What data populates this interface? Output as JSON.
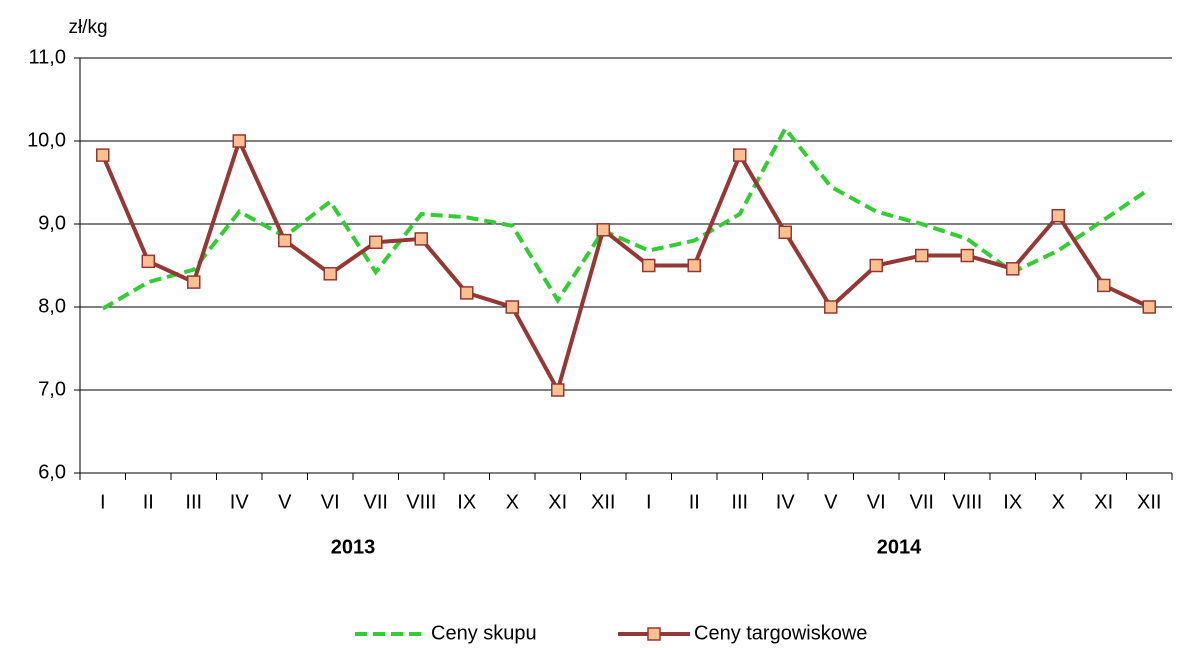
{
  "chart_data": {
    "type": "line",
    "y_label": "zł/kg",
    "categories": [
      "I",
      "II",
      "III",
      "IV",
      "V",
      "VI",
      "VII",
      "VIII",
      "IX",
      "X",
      "XI",
      "XII",
      "I",
      "II",
      "III",
      "IV",
      "V",
      "VI",
      "VII",
      "VIII",
      "IX",
      "X",
      "XI",
      "XII"
    ],
    "year_labels": [
      "2013",
      "2014"
    ],
    "series": [
      {
        "name": "Ceny skupu",
        "color": "#33cc33",
        "line_style": "dashed",
        "marker": "none",
        "values": [
          7.98,
          8.3,
          8.45,
          9.15,
          8.85,
          9.27,
          8.42,
          9.12,
          9.08,
          8.98,
          8.08,
          8.92,
          8.68,
          8.8,
          9.12,
          10.15,
          9.45,
          9.15,
          9.0,
          8.82,
          8.42,
          8.68,
          9.05,
          9.42
        ]
      },
      {
        "name": "Ceny targowiskowe",
        "color": "#953735",
        "line_style": "solid",
        "marker": "square",
        "marker_color": "#fac090",
        "values": [
          9.83,
          8.55,
          8.3,
          10.0,
          8.8,
          8.4,
          8.78,
          8.82,
          8.17,
          8.0,
          7.0,
          8.93,
          8.5,
          8.5,
          9.83,
          8.9,
          8.0,
          8.5,
          8.62,
          8.62,
          8.46,
          9.1,
          8.26,
          8.0
        ]
      }
    ],
    "ylim": [
      6,
      11
    ],
    "yticks": [
      {
        "value": 6,
        "label": "6,0"
      },
      {
        "value": 7,
        "label": "7,0"
      },
      {
        "value": 8,
        "label": "8,0"
      },
      {
        "value": 9,
        "label": "9,0"
      },
      {
        "value": 10,
        "label": "10,0"
      },
      {
        "value": 11,
        "label": "11,0"
      }
    ],
    "grid": true,
    "legend": "bottom"
  }
}
